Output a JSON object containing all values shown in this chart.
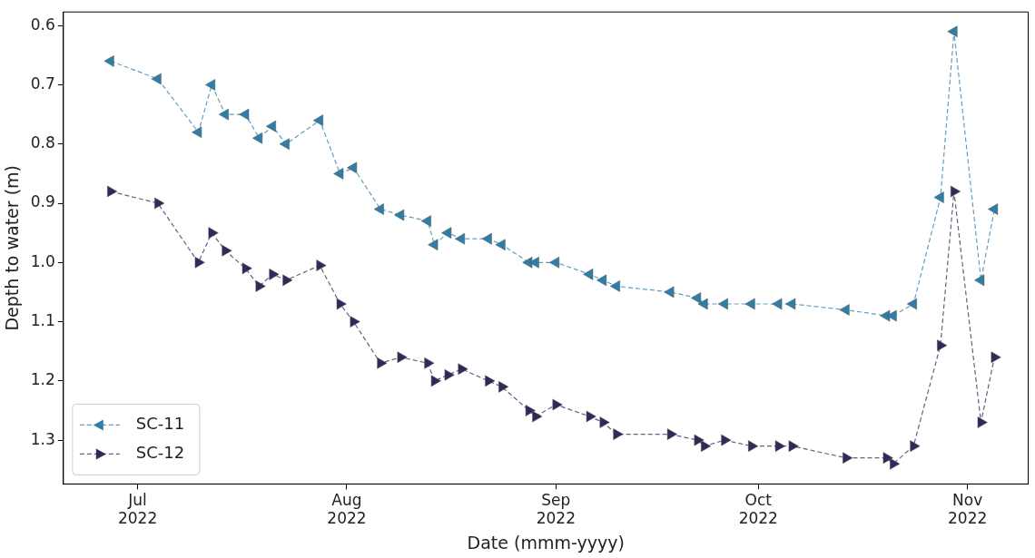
{
  "chart_data": {
    "type": "line",
    "xlabel": "Date (mmm-yyyy)",
    "ylabel": "Depth to water (m)",
    "xlim": [
      "2022-06-20",
      "2022-11-10"
    ],
    "xticks": [
      {
        "value": "2022-07-01",
        "label": "Jul 2022"
      },
      {
        "value": "2022-08-01",
        "label": "Aug 2022"
      },
      {
        "value": "2022-09-01",
        "label": "Sep 2022"
      },
      {
        "value": "2022-10-01",
        "label": "Oct 2022"
      },
      {
        "value": "2022-11-01",
        "label": "Nov 2022"
      }
    ],
    "ylim": [
      1.374,
      0.577
    ],
    "yticks": [
      {
        "value": 0.6,
        "label": "0.6"
      },
      {
        "value": 0.7,
        "label": "0.7"
      },
      {
        "value": 0.8,
        "label": "0.8"
      },
      {
        "value": 0.9,
        "label": "0.9"
      },
      {
        "value": 1.0,
        "label": "1.0"
      },
      {
        "value": 1.1,
        "label": "1.1"
      },
      {
        "value": 1.2,
        "label": "1.2"
      },
      {
        "value": 1.3,
        "label": "1.3"
      }
    ],
    "grid": false,
    "legend": "bottom left",
    "line_style": "dashed",
    "x": [
      "2022-06-27",
      "2022-07-04",
      "2022-07-10",
      "2022-07-12",
      "2022-07-14",
      "2022-07-17",
      "2022-07-19",
      "2022-07-21",
      "2022-07-23",
      "2022-07-28",
      "2022-07-31",
      "2022-08-02",
      "2022-08-06",
      "2022-08-09",
      "2022-08-13",
      "2022-08-14",
      "2022-08-16",
      "2022-08-18",
      "2022-08-22",
      "2022-08-24",
      "2022-08-28",
      "2022-08-29",
      "2022-09-01",
      "2022-09-06",
      "2022-09-08",
      "2022-09-10",
      "2022-09-18",
      "2022-09-22",
      "2022-09-23",
      "2022-09-26",
      "2022-09-30",
      "2022-10-04",
      "2022-10-06",
      "2022-10-14",
      "2022-10-20",
      "2022-10-21",
      "2022-10-24",
      "2022-10-28",
      "2022-10-30",
      "2022-11-03",
      "2022-11-05"
    ],
    "series": [
      {
        "name": "SC-11",
        "color": "#2f7ea8",
        "marker": "triangle-left",
        "values": [
          0.66,
          0.69,
          0.78,
          0.7,
          0.75,
          0.75,
          0.79,
          0.77,
          0.8,
          0.76,
          0.85,
          0.84,
          0.91,
          0.92,
          0.93,
          0.97,
          0.95,
          0.96,
          0.96,
          0.97,
          1.0,
          1.0,
          1.0,
          1.02,
          1.03,
          1.04,
          1.05,
          1.06,
          1.07,
          1.07,
          1.07,
          1.07,
          1.07,
          1.08,
          1.09,
          1.09,
          1.07,
          0.89,
          0.61,
          1.03,
          0.91
        ]
      },
      {
        "name": "SC-12",
        "color": "#2e2a5a",
        "marker": "triangle-right",
        "values": [
          0.88,
          0.9,
          1.0,
          0.95,
          0.98,
          1.01,
          1.04,
          1.02,
          1.03,
          1.005,
          1.07,
          1.1,
          1.17,
          1.16,
          1.17,
          1.2,
          1.19,
          1.18,
          1.2,
          1.21,
          1.25,
          1.26,
          1.24,
          1.26,
          1.27,
          1.29,
          1.29,
          1.3,
          1.31,
          1.3,
          1.31,
          1.31,
          1.31,
          1.33,
          1.33,
          1.34,
          1.31,
          1.14,
          0.88,
          1.27,
          1.16
        ]
      }
    ]
  }
}
